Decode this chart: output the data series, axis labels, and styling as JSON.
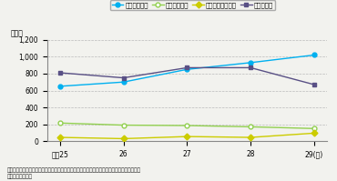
{
  "years": [
    "平成25",
    "26",
    "27",
    "28",
    "29(年)"
  ],
  "series": [
    {
      "label": "画像目的使用",
      "values": [
        650,
        700,
        850,
        930,
        1020
      ],
      "color": "#00b0f0",
      "marker": "o",
      "marker_fill": "#00b0f0"
    },
    {
      "label": "通話目的使用",
      "values": [
        215,
        190,
        185,
        170,
        150
      ],
      "color": "#92d050",
      "marker": "o",
      "marker_fill": "white"
    },
    {
      "label": "ハンズフリー使用",
      "values": [
        45,
        30,
        55,
        45,
        95
      ],
      "color": "#cccc00",
      "marker": "D",
      "marker_fill": "#cccc00"
    },
    {
      "label": "その他動作",
      "values": [
        810,
        750,
        870,
        870,
        670
      ],
      "color": "#595085",
      "marker": "s",
      "marker_fill": "#595085"
    }
  ],
  "ylabel": "（件）",
  "ylim": [
    0,
    1200
  ],
  "yticks": [
    0,
    200,
    400,
    600,
    800,
    1000,
    1200
  ],
  "note1": "注：「その他動作」とは、携帯電話等を取ろうとしたなど、他の使用以外の携帯電話等に関す",
  "note2": "　る動作をいう。",
  "background_color": "#f2f2ee",
  "plot_bg": "#f2f2ee"
}
